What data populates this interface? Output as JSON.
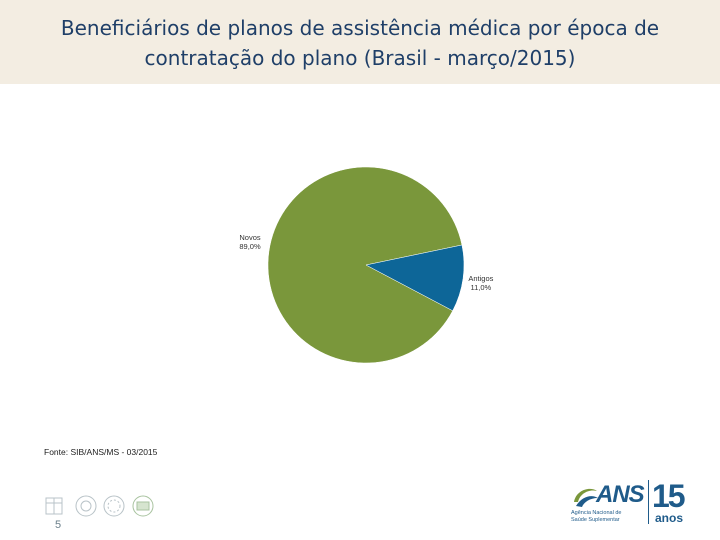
{
  "header": {
    "title_line1": "Beneficiários de planos de assistência médica por época de",
    "title_line2": "contratação do plano (Brasil - março/2015)"
  },
  "chart_data": {
    "type": "pie",
    "title": "Beneficiários de planos de assistência médica por época de contratação do plano (Brasil - março/2015)",
    "slices": [
      {
        "label": "Novos",
        "value": 89.0,
        "display": "89,0%",
        "color": "#7a973b"
      },
      {
        "label": "Antigos",
        "value": 11.0,
        "display": "11,0%",
        "color": "#0d6698"
      }
    ]
  },
  "footer": {
    "source": "Fonte: SIB/ANS/MS - 03/2015",
    "page_number": "5"
  },
  "logo": {
    "name": "ANS",
    "subtitle_line1": "Agência Nacional de",
    "subtitle_line2": "Saúde Suplementar",
    "anniversary_number": "15",
    "anniversary_word": "anos",
    "color": "#1f5b8a"
  }
}
